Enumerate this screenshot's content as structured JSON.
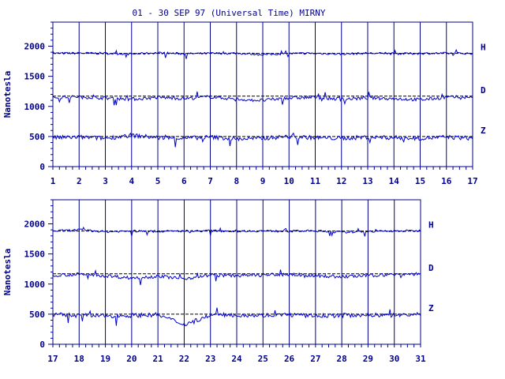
{
  "title": "01 - 30 SEP 97 (Universal Time) MIRNY",
  "colors": {
    "axis": "#00008b",
    "trace": "#0000cd",
    "baseline": "#000000",
    "background": "#ffffff"
  },
  "chart_data": [
    {
      "type": "line",
      "xlabel": "",
      "ylabel": "Nanotesla",
      "x_ticks": [
        "1",
        "2",
        "3",
        "4",
        "5",
        "6",
        "7",
        "8",
        "9",
        "10",
        "11",
        "12",
        "13",
        "14",
        "15",
        "16",
        "17"
      ],
      "xlim": [
        1,
        17
      ],
      "y_ticks": [
        "0",
        "500",
        "1000",
        "1500",
        "2000"
      ],
      "ylim": [
        0,
        2400
      ],
      "grid": "vertical day lines",
      "series": [
        {
          "name": "H",
          "baseline": 1880,
          "values": [
            1880,
            1885,
            1882,
            1870,
            1890,
            1875,
            1880,
            1885,
            1860,
            1878,
            1882,
            1870,
            1884,
            1876,
            1880,
            1882,
            1880
          ]
        },
        {
          "name": "D",
          "baseline": 1170,
          "values": [
            1150,
            1160,
            1140,
            1120,
            1150,
            1130,
            1160,
            1120,
            1100,
            1140,
            1150,
            1120,
            1140,
            1130,
            1110,
            1150,
            1160
          ]
        },
        {
          "name": "Z",
          "baseline": 500,
          "values": [
            480,
            490,
            470,
            520,
            480,
            470,
            490,
            460,
            470,
            500,
            480,
            470,
            490,
            480,
            470,
            490,
            470
          ]
        }
      ]
    },
    {
      "type": "line",
      "xlabel": "",
      "ylabel": "Nanotesla",
      "x_ticks": [
        "17",
        "18",
        "19",
        "20",
        "21",
        "22",
        "23",
        "24",
        "25",
        "26",
        "27",
        "28",
        "29",
        "30",
        "31"
      ],
      "xlim": [
        17,
        31
      ],
      "y_ticks": [
        "0",
        "500",
        "1000",
        "1500",
        "2000"
      ],
      "ylim": [
        0,
        2400
      ],
      "grid": "vertical day lines",
      "series": [
        {
          "name": "H",
          "baseline": 1880,
          "values": [
            1880,
            1900,
            1870,
            1880,
            1875,
            1880,
            1885,
            1880,
            1882,
            1878,
            1885,
            1860,
            1875,
            1880,
            1885
          ]
        },
        {
          "name": "D",
          "baseline": 1170,
          "values": [
            1150,
            1160,
            1140,
            1100,
            1130,
            1090,
            1150,
            1140,
            1150,
            1160,
            1140,
            1120,
            1140,
            1160,
            1170
          ]
        },
        {
          "name": "Z",
          "baseline": 500,
          "values": [
            490,
            480,
            470,
            480,
            490,
            330,
            480,
            490,
            480,
            490,
            470,
            480,
            490,
            480,
            500
          ]
        }
      ]
    }
  ]
}
